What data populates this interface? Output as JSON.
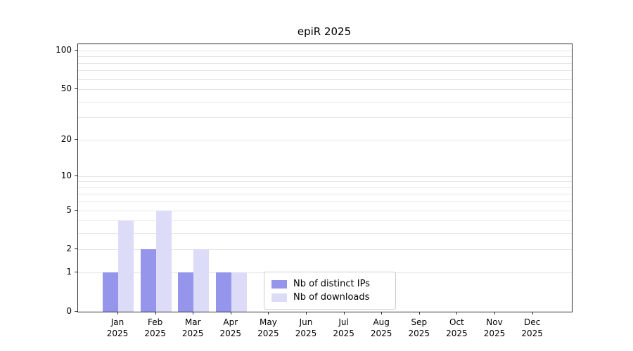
{
  "title": "epiR 2025",
  "chart_data": {
    "type": "bar",
    "title": "epiR 2025",
    "categories": [
      "Jan",
      "Feb",
      "Mar",
      "Apr",
      "May",
      "Jun",
      "Jul",
      "Aug",
      "Sep",
      "Oct",
      "Nov",
      "Dec"
    ],
    "x_year": "2025",
    "series": [
      {
        "name": "Nb of distinct IPs",
        "color": "#9595ec",
        "values": [
          1,
          2,
          1,
          1,
          0,
          0,
          0,
          0,
          0,
          0,
          0,
          0
        ]
      },
      {
        "name": "Nb of downloads",
        "color": "#dcdcf8",
        "values": [
          4,
          5,
          2,
          1,
          0,
          0,
          0,
          0,
          0,
          0,
          0,
          0
        ]
      }
    ],
    "y_ticks": [
      0,
      1,
      2,
      5,
      10,
      20,
      50,
      100
    ],
    "y_scale": "log1p",
    "ylim": [
      0,
      100
    ],
    "grid": "horizontal-minor",
    "legend_position": "inside-bottom-center",
    "grid_color": "#e6e6e6"
  }
}
